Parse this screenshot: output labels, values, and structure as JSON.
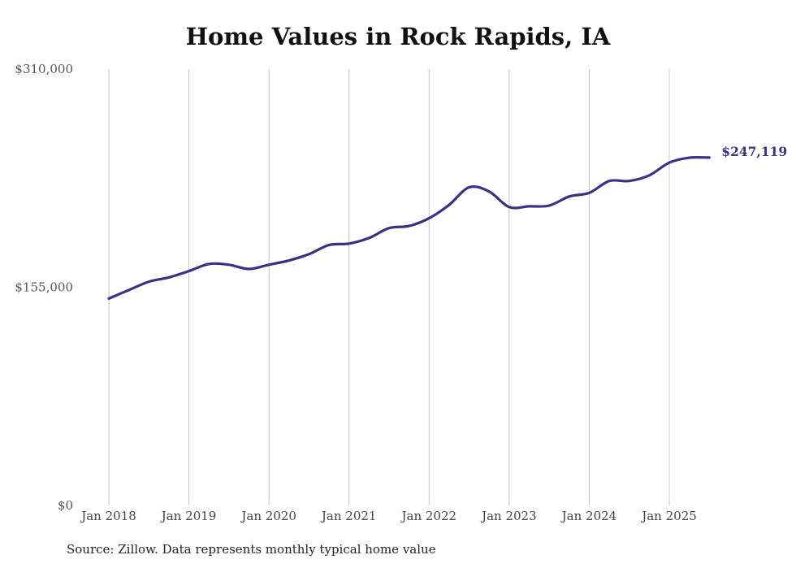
{
  "chart_data": {
    "type": "line",
    "title": "Home Values in Rock Rapids, IA",
    "source": "Source: Zillow. Data represents monthly typical home value",
    "ylim": [
      0,
      310000
    ],
    "y_ticks": [
      {
        "value": 0,
        "label": "$0"
      },
      {
        "value": 155000,
        "label": "$155,000"
      },
      {
        "value": 310000,
        "label": "$310,000"
      }
    ],
    "x_ticks": [
      {
        "value": 2018.0,
        "label": "Jan 2018"
      },
      {
        "value": 2019.0,
        "label": "Jan 2019"
      },
      {
        "value": 2020.0,
        "label": "Jan 2020"
      },
      {
        "value": 2021.0,
        "label": "Jan 2021"
      },
      {
        "value": 2022.0,
        "label": "Jan 2022"
      },
      {
        "value": 2023.0,
        "label": "Jan 2023"
      },
      {
        "value": 2024.0,
        "label": "Jan 2024"
      },
      {
        "value": 2025.0,
        "label": "Jan 2025"
      }
    ],
    "grid": "vertical",
    "line_color": "#3b2f86",
    "end_label": "$247,119",
    "series": [
      {
        "x": [
          "2018-01",
          "2018-04",
          "2018-07",
          "2018-10",
          "2019-01",
          "2019-04",
          "2019-07",
          "2019-10",
          "2020-01",
          "2020-04",
          "2020-07",
          "2020-10",
          "2021-01",
          "2021-04",
          "2021-07",
          "2021-10",
          "2022-01",
          "2022-04",
          "2022-07",
          "2022-10",
          "2023-01",
          "2023-04",
          "2023-07",
          "2023-10",
          "2024-01",
          "2024-04",
          "2024-07",
          "2024-10",
          "2025-01",
          "2025-04",
          "2025-07"
        ],
        "values": [
          147000,
          153000,
          159000,
          162000,
          166500,
          171500,
          171000,
          168000,
          171000,
          174000,
          178500,
          185000,
          186000,
          190000,
          197000,
          198500,
          204000,
          213500,
          226000,
          223000,
          212000,
          212500,
          213000,
          219500,
          222000,
          230500,
          230500,
          234500,
          243500,
          247000,
          247119
        ]
      }
    ]
  }
}
